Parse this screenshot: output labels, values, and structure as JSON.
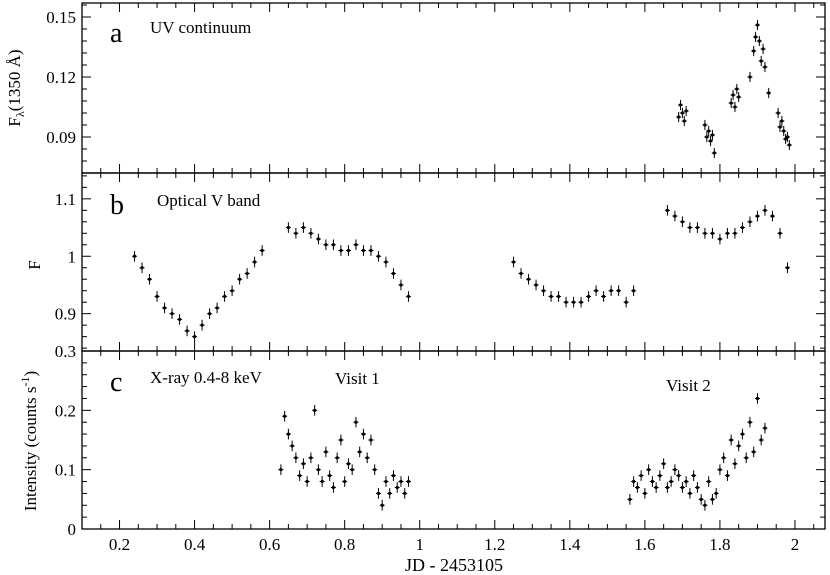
{
  "chart_data": [
    {
      "type": "scatter",
      "panel_letter": "a",
      "annotation": "UV continuum",
      "ylabel": "F",
      "ylabel_subscript": "λ",
      "ylabel_suffix": "(1350 Å)",
      "xlim": [
        0.1,
        2.08
      ],
      "ylim": [
        0.072,
        0.157
      ],
      "yticks": [
        0.09,
        0.12,
        0.15
      ],
      "ytick_labels": [
        "0.09",
        "0.12",
        "0.15"
      ],
      "series": [
        {
          "points": [
            [
              1.69,
              0.1
            ],
            [
              1.695,
              0.106
            ],
            [
              1.7,
              0.102
            ],
            [
              1.705,
              0.098
            ],
            [
              1.71,
              0.103
            ],
            [
              1.76,
              0.096
            ],
            [
              1.765,
              0.09
            ],
            [
              1.77,
              0.093
            ],
            [
              1.775,
              0.088
            ],
            [
              1.78,
              0.091
            ],
            [
              1.785,
              0.082
            ],
            [
              1.83,
              0.107
            ],
            [
              1.835,
              0.111
            ],
            [
              1.84,
              0.105
            ],
            [
              1.845,
              0.114
            ],
            [
              1.85,
              0.11
            ],
            [
              1.88,
              0.12
            ],
            [
              1.89,
              0.133
            ],
            [
              1.895,
              0.14
            ],
            [
              1.9,
              0.146
            ],
            [
              1.905,
              0.138
            ],
            [
              1.91,
              0.128
            ],
            [
              1.915,
              0.134
            ],
            [
              1.92,
              0.125
            ],
            [
              1.93,
              0.112
            ],
            [
              1.955,
              0.102
            ],
            [
              1.96,
              0.095
            ],
            [
              1.965,
              0.098
            ],
            [
              1.97,
              0.093
            ],
            [
              1.975,
              0.089
            ],
            [
              1.98,
              0.09
            ],
            [
              1.985,
              0.086
            ]
          ]
        }
      ]
    },
    {
      "type": "scatter",
      "panel_letter": "b",
      "annotation": "Optical V band",
      "ylabel": "F",
      "xlim": [
        0.1,
        2.08
      ],
      "ylim": [
        0.835,
        1.145
      ],
      "yticks": [
        0.9,
        1.0,
        1.1
      ],
      "ytick_labels": [
        "0.9",
        "1",
        "1.1"
      ],
      "series": [
        {
          "points": [
            [
              0.24,
              1.0
            ],
            [
              0.26,
              0.98
            ],
            [
              0.28,
              0.96
            ],
            [
              0.3,
              0.93
            ],
            [
              0.32,
              0.91
            ],
            [
              0.34,
              0.9
            ],
            [
              0.36,
              0.89
            ],
            [
              0.38,
              0.87
            ],
            [
              0.4,
              0.86
            ],
            [
              0.42,
              0.88
            ],
            [
              0.44,
              0.9
            ],
            [
              0.46,
              0.91
            ],
            [
              0.48,
              0.93
            ],
            [
              0.5,
              0.94
            ],
            [
              0.52,
              0.96
            ],
            [
              0.54,
              0.97
            ],
            [
              0.56,
              0.99
            ],
            [
              0.58,
              1.01
            ],
            [
              0.65,
              1.05
            ],
            [
              0.67,
              1.04
            ],
            [
              0.69,
              1.05
            ],
            [
              0.71,
              1.04
            ],
            [
              0.73,
              1.03
            ],
            [
              0.75,
              1.02
            ],
            [
              0.77,
              1.02
            ],
            [
              0.79,
              1.01
            ],
            [
              0.81,
              1.01
            ],
            [
              0.83,
              1.02
            ],
            [
              0.85,
              1.01
            ],
            [
              0.87,
              1.01
            ],
            [
              0.89,
              1.0
            ],
            [
              0.91,
              0.99
            ],
            [
              0.93,
              0.97
            ],
            [
              0.95,
              0.95
            ],
            [
              0.97,
              0.93
            ],
            [
              1.25,
              0.99
            ],
            [
              1.27,
              0.97
            ],
            [
              1.29,
              0.96
            ],
            [
              1.31,
              0.95
            ],
            [
              1.33,
              0.94
            ],
            [
              1.35,
              0.93
            ],
            [
              1.37,
              0.93
            ],
            [
              1.39,
              0.92
            ],
            [
              1.41,
              0.92
            ],
            [
              1.43,
              0.92
            ],
            [
              1.45,
              0.93
            ],
            [
              1.47,
              0.94
            ],
            [
              1.49,
              0.93
            ],
            [
              1.51,
              0.94
            ],
            [
              1.53,
              0.94
            ],
            [
              1.55,
              0.92
            ],
            [
              1.57,
              0.94
            ],
            [
              1.66,
              1.08
            ],
            [
              1.68,
              1.07
            ],
            [
              1.7,
              1.06
            ],
            [
              1.72,
              1.05
            ],
            [
              1.74,
              1.05
            ],
            [
              1.76,
              1.04
            ],
            [
              1.78,
              1.04
            ],
            [
              1.8,
              1.03
            ],
            [
              1.82,
              1.04
            ],
            [
              1.84,
              1.04
            ],
            [
              1.86,
              1.05
            ],
            [
              1.88,
              1.06
            ],
            [
              1.9,
              1.07
            ],
            [
              1.92,
              1.08
            ],
            [
              1.94,
              1.07
            ],
            [
              1.96,
              1.04
            ],
            [
              1.98,
              0.98
            ]
          ]
        }
      ]
    },
    {
      "type": "scatter",
      "panel_letter": "c",
      "annotation": "X-ray 0.4-8 keV",
      "labels": [
        "Visit 1",
        "Visit 2"
      ],
      "ylabel": "Intensity (counts s",
      "ylabel_superscript": "-1",
      "ylabel_close": ")",
      "xlabel": "JD - 2453105",
      "xlim": [
        0.1,
        2.08
      ],
      "ylim": [
        0,
        0.3
      ],
      "xticks": [
        0.2,
        0.4,
        0.6,
        0.8,
        1.0,
        1.2,
        1.4,
        1.6,
        1.8,
        2.0
      ],
      "xtick_labels": [
        "0.2",
        "0.4",
        "0.6",
        "0.8",
        "1",
        "1.2",
        "1.4",
        "1.6",
        "1.8",
        "2"
      ],
      "yticks": [
        0,
        0.1,
        0.2,
        0.3
      ],
      "ytick_labels": [
        "0",
        "0.1",
        "0.2",
        "0.3"
      ],
      "series": [
        {
          "points": [
            [
              0.63,
              0.1
            ],
            [
              0.64,
              0.19
            ],
            [
              0.65,
              0.16
            ],
            [
              0.66,
              0.14
            ],
            [
              0.67,
              0.12
            ],
            [
              0.68,
              0.09
            ],
            [
              0.69,
              0.11
            ],
            [
              0.7,
              0.08
            ],
            [
              0.71,
              0.12
            ],
            [
              0.72,
              0.2
            ],
            [
              0.73,
              0.1
            ],
            [
              0.74,
              0.08
            ],
            [
              0.75,
              0.13
            ],
            [
              0.76,
              0.09
            ],
            [
              0.77,
              0.07
            ],
            [
              0.78,
              0.12
            ],
            [
              0.79,
              0.15
            ],
            [
              0.8,
              0.08
            ],
            [
              0.81,
              0.11
            ],
            [
              0.82,
              0.1
            ],
            [
              0.83,
              0.18
            ],
            [
              0.84,
              0.13
            ],
            [
              0.85,
              0.16
            ],
            [
              0.86,
              0.12
            ],
            [
              0.87,
              0.15
            ],
            [
              0.88,
              0.1
            ],
            [
              0.89,
              0.06
            ],
            [
              0.9,
              0.04
            ],
            [
              0.91,
              0.08
            ],
            [
              0.92,
              0.06
            ],
            [
              0.93,
              0.09
            ],
            [
              0.94,
              0.07
            ],
            [
              0.95,
              0.08
            ],
            [
              0.96,
              0.06
            ],
            [
              0.97,
              0.08
            ],
            [
              1.56,
              0.05
            ],
            [
              1.57,
              0.08
            ],
            [
              1.58,
              0.07
            ],
            [
              1.59,
              0.09
            ],
            [
              1.6,
              0.06
            ],
            [
              1.61,
              0.1
            ],
            [
              1.62,
              0.08
            ],
            [
              1.63,
              0.07
            ],
            [
              1.64,
              0.09
            ],
            [
              1.65,
              0.11
            ],
            [
              1.66,
              0.07
            ],
            [
              1.67,
              0.08
            ],
            [
              1.68,
              0.1
            ],
            [
              1.69,
              0.09
            ],
            [
              1.7,
              0.07
            ],
            [
              1.71,
              0.08
            ],
            [
              1.72,
              0.06
            ],
            [
              1.73,
              0.09
            ],
            [
              1.74,
              0.07
            ],
            [
              1.75,
              0.05
            ],
            [
              1.76,
              0.04
            ],
            [
              1.77,
              0.08
            ],
            [
              1.78,
              0.05
            ],
            [
              1.79,
              0.06
            ],
            [
              1.8,
              0.1
            ],
            [
              1.81,
              0.12
            ],
            [
              1.82,
              0.09
            ],
            [
              1.83,
              0.15
            ],
            [
              1.84,
              0.11
            ],
            [
              1.85,
              0.14
            ],
            [
              1.86,
              0.16
            ],
            [
              1.87,
              0.12
            ],
            [
              1.88,
              0.18
            ],
            [
              1.89,
              0.13
            ],
            [
              1.9,
              0.22
            ],
            [
              1.91,
              0.15
            ],
            [
              1.92,
              0.17
            ]
          ]
        }
      ]
    }
  ]
}
